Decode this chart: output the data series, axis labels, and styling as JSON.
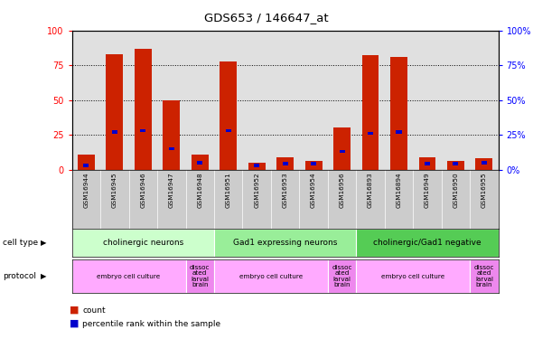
{
  "title": "GDS653 / 146647_at",
  "samples": [
    "GSM16944",
    "GSM16945",
    "GSM16946",
    "GSM16947",
    "GSM16948",
    "GSM16951",
    "GSM16952",
    "GSM16953",
    "GSM16954",
    "GSM16956",
    "GSM16893",
    "GSM16894",
    "GSM16949",
    "GSM16950",
    "GSM16955"
  ],
  "count_values": [
    11,
    83,
    87,
    50,
    11,
    78,
    5,
    9,
    6,
    30,
    82,
    81,
    9,
    6,
    8
  ],
  "percentile_values": [
    3,
    27,
    28,
    15,
    5,
    28,
    3,
    4,
    4,
    13,
    26,
    27,
    4,
    4,
    5
  ],
  "cell_type_groups": [
    {
      "label": "cholinergic neurons",
      "start": 0,
      "end": 5,
      "color": "#ccffcc"
    },
    {
      "label": "Gad1 expressing neurons",
      "start": 5,
      "end": 10,
      "color": "#99ee99"
    },
    {
      "label": "cholinergic/Gad1 negative",
      "start": 10,
      "end": 15,
      "color": "#55cc55"
    }
  ],
  "protocol_groups": [
    {
      "label": "embryo cell culture",
      "start": 0,
      "end": 4,
      "color": "#ffaaff"
    },
    {
      "label": "dissoc\nated\nlarval\nbrain",
      "start": 4,
      "end": 5,
      "color": "#ee88ee"
    },
    {
      "label": "embryo cell culture",
      "start": 5,
      "end": 9,
      "color": "#ffaaff"
    },
    {
      "label": "dissoc\nated\nlarval\nbrain",
      "start": 9,
      "end": 10,
      "color": "#ee88ee"
    },
    {
      "label": "embryo cell culture",
      "start": 10,
      "end": 14,
      "color": "#ffaaff"
    },
    {
      "label": "dissoc\nated\nlarval\nbrain",
      "start": 14,
      "end": 15,
      "color": "#ee88ee"
    }
  ],
  "bar_color": "#cc2200",
  "percentile_color": "#0000cc",
  "plot_bg": "#e0e0e0",
  "ylim": [
    0,
    100
  ],
  "y_ticks": [
    0,
    25,
    50,
    75,
    100
  ],
  "legend_count": "count",
  "legend_pct": "percentile rank within the sample"
}
